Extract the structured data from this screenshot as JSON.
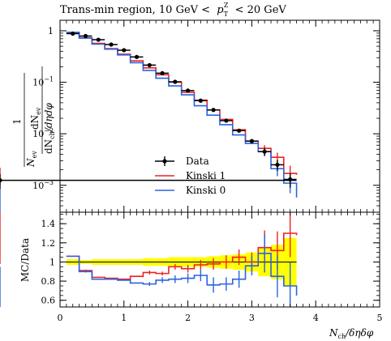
{
  "chart_data": [
    {
      "type": "line",
      "title": "Trans-min region, 10 GeV < p_T^Z < 20 GeV",
      "title_parts": {
        "prefix": "Trans-min region, 10 GeV <",
        "p": "p",
        "sup": "Z",
        "sub": "T",
        "suffix": "< 20 GeV"
      },
      "ylabel": "1/N_ev dN_ev/dN_ch/dηdφ",
      "ylabel_parts": {
        "den": "N",
        "den_sub": "ev",
        "dn": "dN",
        "dn_sub": "ev",
        "frac_den": "dN",
        "frac_den_sub": "ch",
        "frac_den_tail": "/dηdφ",
        "one": "1"
      },
      "y_scale": "log",
      "xlim": [
        0,
        5
      ],
      "ylim": [
        0.0003,
        1.6
      ],
      "y_ticks": [
        {
          "value": 1,
          "label": "1"
        },
        {
          "value": 0.1,
          "label": "10",
          "exp": "−1"
        },
        {
          "value": 0.01,
          "label": "10",
          "exp": "−2"
        },
        {
          "value": 0.001,
          "label": "10",
          "exp": "−3"
        }
      ],
      "bin_edges": [
        0.1,
        0.3,
        0.5,
        0.7,
        0.9,
        1.1,
        1.3,
        1.5,
        1.7,
        1.9,
        2.1,
        2.3,
        2.5,
        2.7,
        2.9,
        3.1,
        3.3,
        3.5,
        3.7
      ],
      "series": [
        {
          "name": "Data",
          "color": "#000000",
          "style": "points",
          "values": [
            0.88,
            0.79,
            0.67,
            0.54,
            0.42,
            0.31,
            0.215,
            0.15,
            0.102,
            0.069,
            0.044,
            0.029,
            0.018,
            0.0115,
            0.0072,
            0.0045,
            0.0025,
            0.0013,
            0.00125
          ],
          "errors": [
            0.04,
            0.03,
            0.025,
            0.02,
            0.02,
            0.015,
            0.01,
            0.006,
            0.004,
            0.003,
            0.002,
            0.0015,
            0.001,
            0.0008,
            0.0007,
            0.0008,
            0.0006,
            0.0004,
            0.0004
          ]
        },
        {
          "name": "Kinski 1",
          "color": "#ee2222",
          "style": "histogram",
          "values": [
            0.92,
            0.73,
            0.57,
            0.45,
            0.35,
            0.26,
            0.19,
            0.14,
            0.101,
            0.064,
            0.045,
            0.029,
            0.019,
            0.012,
            0.0072,
            0.0052,
            0.0035,
            0.0017,
            0.0016
          ],
          "errors": [
            0,
            0,
            0,
            0,
            0,
            0,
            0,
            0,
            0,
            0,
            0,
            0,
            0,
            0,
            0,
            0.0008,
            0.0008,
            0.0007,
            0.0006
          ]
        },
        {
          "name": "Kinski 0",
          "color": "#2a63e0",
          "style": "histogram",
          "values": [
            0.93,
            0.72,
            0.55,
            0.44,
            0.34,
            0.24,
            0.17,
            0.12,
            0.085,
            0.057,
            0.035,
            0.023,
            0.015,
            0.0095,
            0.0065,
            0.0045,
            0.0021,
            0.0011,
            0.00058
          ],
          "errors": [
            0,
            0,
            0,
            0,
            0,
            0,
            0,
            0,
            0,
            0,
            0,
            0,
            0,
            0,
            0,
            0.0008,
            0.0006,
            0.0004,
            0.0003
          ]
        }
      ],
      "legend": {
        "placement": "bottom-right",
        "entries": [
          "Data",
          "Kinski 1",
          "Kinski 0"
        ]
      }
    },
    {
      "type": "line",
      "ylabel": "MC/Data",
      "xlabel": "N_ch/δηδφ",
      "xlabel_parts": {
        "n": "N",
        "sub": "ch",
        "tail": "/δηδφ"
      },
      "xlim": [
        0,
        5
      ],
      "ylim": [
        0.53,
        1.52
      ],
      "x_ticks": [
        "0",
        "1",
        "2",
        "3",
        "4",
        "5"
      ],
      "y_ticks": [
        "0.6",
        "0.8",
        "1",
        "1.2",
        "1.4"
      ],
      "reference_line": 1,
      "band": {
        "color": "#ffff00",
        "half_width": [
          0.03,
          0.02,
          0.03,
          0.03,
          0.03,
          0.03,
          0.04,
          0.04,
          0.05,
          0.05,
          0.05,
          0.06,
          0.07,
          0.08,
          0.1,
          0.15,
          0.18,
          0.25,
          0.28
        ]
      },
      "series": [
        {
          "name": "Kinski 1",
          "color": "#ee2222",
          "values": [
            1.06,
            0.91,
            0.84,
            0.83,
            0.82,
            0.85,
            0.89,
            0.88,
            0.95,
            0.93,
            0.97,
            0.98,
            1.0,
            1.05,
            1.0,
            1.15,
            1.12,
            1.3,
            1.28
          ],
          "errors": [
            0,
            0.01,
            0,
            0,
            0,
            0,
            0.02,
            0.02,
            0.03,
            0.04,
            0.05,
            0.06,
            0.07,
            0.08,
            0.1,
            0.18,
            0.2,
            0.25,
            0.3
          ]
        },
        {
          "name": "Kinski 0",
          "color": "#2a63e0",
          "values": [
            1.06,
            0.9,
            0.82,
            0.82,
            0.81,
            0.78,
            0.77,
            0.81,
            0.82,
            0.83,
            0.86,
            0.76,
            0.77,
            0.82,
            0.96,
            1.09,
            0.85,
            0.75,
            0.65
          ],
          "errors": [
            0,
            0.01,
            0,
            0,
            0,
            0,
            0.02,
            0.03,
            0.04,
            0.05,
            0.06,
            0.08,
            0.07,
            0.09,
            0.1,
            0.2,
            0.22,
            0.25,
            0.3
          ]
        }
      ]
    }
  ],
  "colors": {
    "data": "#000000",
    "kinski1": "#ee2222",
    "kinski0": "#2a63e0",
    "band": "#ffff00"
  }
}
